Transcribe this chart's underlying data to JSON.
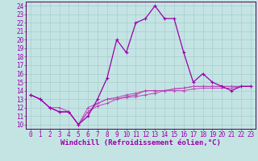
{
  "xlabel": "Windchill (Refroidissement éolien,°C)",
  "xlim": [
    -0.5,
    23.5
  ],
  "ylim": [
    9.5,
    24.5
  ],
  "xticks": [
    0,
    1,
    2,
    3,
    4,
    5,
    6,
    7,
    8,
    9,
    10,
    11,
    12,
    13,
    14,
    15,
    16,
    17,
    18,
    19,
    20,
    21,
    22,
    23
  ],
  "yticks": [
    10,
    11,
    12,
    13,
    14,
    15,
    16,
    17,
    18,
    19,
    20,
    21,
    22,
    23,
    24
  ],
  "background_color": "#c4e4e4",
  "grid_color": "#a8cccc",
  "line_color1": "#9900aa",
  "line_color2": "#bb44bb",
  "line1_y": [
    13.5,
    13.0,
    12.0,
    11.5,
    11.5,
    10.0,
    11.0,
    13.0,
    15.5,
    20.0,
    18.5,
    22.0,
    22.5,
    24.0,
    22.5,
    22.5,
    18.5,
    15.0,
    16.0,
    15.0,
    14.5,
    14.0,
    14.5,
    14.5
  ],
  "line2_y": [
    13.5,
    13.0,
    12.0,
    11.5,
    11.5,
    10.0,
    11.5,
    12.5,
    13.0,
    13.2,
    13.5,
    13.7,
    14.0,
    14.0,
    14.0,
    14.2,
    14.3,
    14.5,
    14.5,
    14.5,
    14.5,
    14.5,
    14.5,
    14.5
  ],
  "line3_y": [
    13.5,
    13.0,
    12.0,
    11.5,
    11.5,
    10.0,
    11.5,
    12.2,
    12.5,
    13.0,
    13.2,
    13.3,
    13.5,
    13.7,
    14.0,
    14.0,
    14.0,
    14.2,
    14.3,
    14.3,
    14.3,
    14.3,
    14.5,
    14.5
  ],
  "line4_y": [
    13.5,
    13.0,
    12.0,
    12.0,
    11.5,
    10.0,
    12.0,
    12.5,
    13.0,
    13.0,
    13.3,
    13.5,
    14.0,
    14.0,
    14.0,
    14.2,
    14.3,
    14.5,
    14.5,
    14.5,
    14.5,
    14.5,
    14.5,
    14.5
  ],
  "font_size_xlabel": 6.5,
  "font_size_tick": 5.5,
  "spine_color": "#550055"
}
